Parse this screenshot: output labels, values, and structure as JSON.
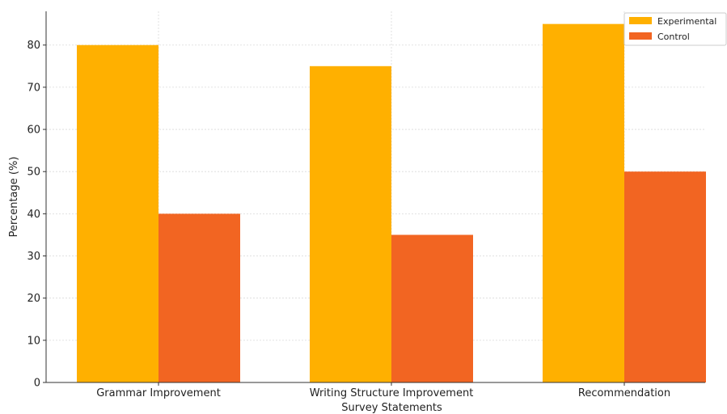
{
  "chart_data": {
    "type": "bar",
    "title": "",
    "xlabel": "Survey Statements",
    "ylabel": "Percentage (%)",
    "categories": [
      "Grammar Improvement",
      "Writing Structure Improvement",
      "Recommendation"
    ],
    "series": [
      {
        "name": "Experimental",
        "values": [
          80,
          75,
          85
        ],
        "color": "#FFB000"
      },
      {
        "name": "Control",
        "values": [
          40,
          35,
          50
        ],
        "color": "#F26522"
      }
    ],
    "ylim": [
      0,
      88
    ],
    "yticks": [
      0,
      10,
      20,
      30,
      40,
      50,
      60,
      70,
      80
    ],
    "grid": true,
    "legend_position": "top-right"
  }
}
